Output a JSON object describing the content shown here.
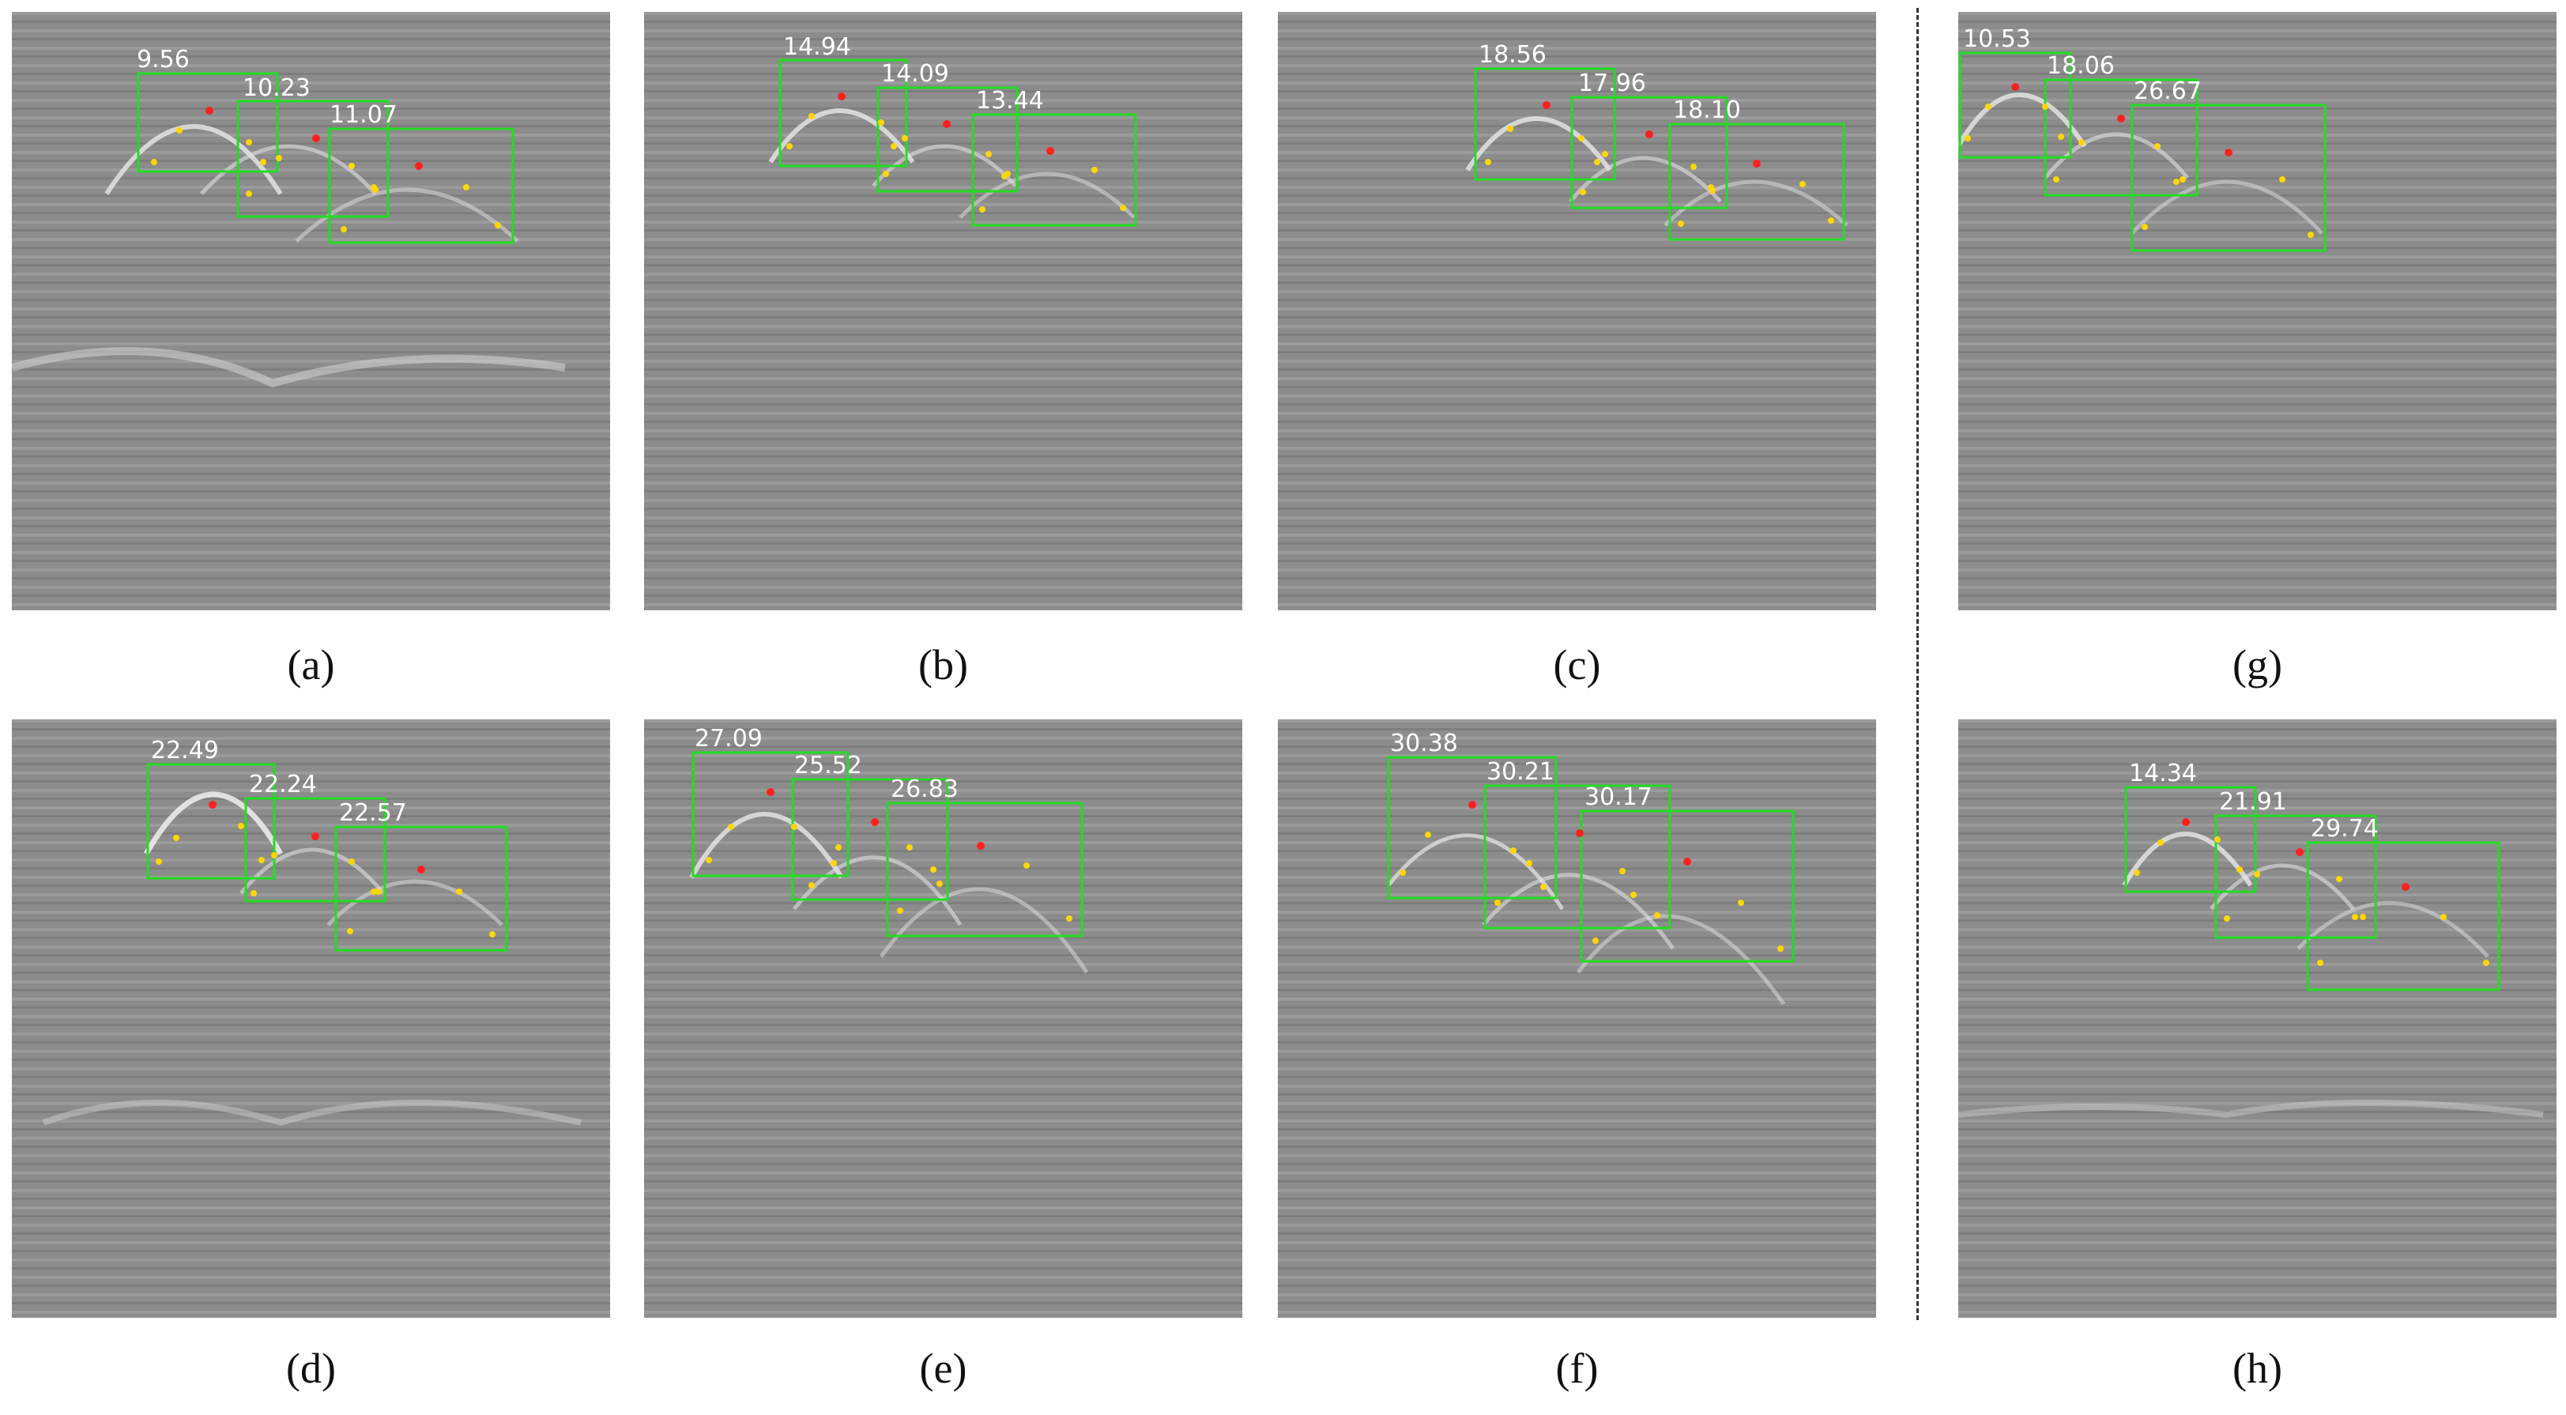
{
  "accent": {
    "box": "#22dd22",
    "apex": "#ff2020",
    "point": "#ffd700"
  },
  "panels": [
    {
      "id": "a",
      "caption": "(a)",
      "labels": [
        "9.56",
        "10.23",
        "11.07"
      ]
    },
    {
      "id": "b",
      "caption": "(b)",
      "labels": [
        "14.94",
        "14.09",
        "13.44"
      ]
    },
    {
      "id": "c",
      "caption": "(c)",
      "labels": [
        "18.56",
        "17.96",
        "18.10"
      ]
    },
    {
      "id": "g",
      "caption": "(g)",
      "labels": [
        "10.53",
        "18.06",
        "26.67"
      ]
    },
    {
      "id": "d",
      "caption": "(d)",
      "labels": [
        "22.49",
        "22.24",
        "22.57"
      ]
    },
    {
      "id": "e",
      "caption": "(e)",
      "labels": [
        "27.09",
        "25.52",
        "26.83"
      ]
    },
    {
      "id": "f",
      "caption": "(f)",
      "labels": [
        "30.38",
        "30.21",
        "30.17"
      ]
    },
    {
      "id": "h",
      "caption": "(h)",
      "labels": [
        "14.34",
        "21.91",
        "29.74"
      ]
    }
  ]
}
